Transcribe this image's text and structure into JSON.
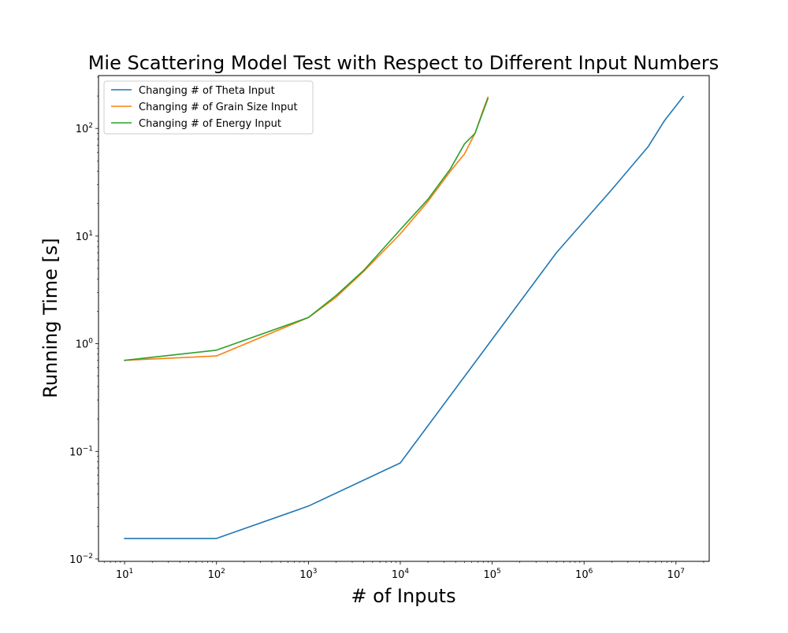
{
  "chart_data": {
    "type": "line",
    "title": "Mie Scattering Model Test with Respect to Different Input Numbers",
    "xlabel": "# of Inputs",
    "ylabel": "Running Time [s]",
    "xscale": "log",
    "yscale": "log",
    "xlim": [
      5.2,
      23000000
    ],
    "ylim": [
      0.0095,
      310
    ],
    "legend_position": "top-left",
    "grid": false,
    "x_ticks": [
      {
        "value": 10,
        "base": "10",
        "exp": "1"
      },
      {
        "value": 100,
        "base": "10",
        "exp": "2"
      },
      {
        "value": 1000,
        "base": "10",
        "exp": "3"
      },
      {
        "value": 10000,
        "base": "10",
        "exp": "4"
      },
      {
        "value": 100000,
        "base": "10",
        "exp": "5"
      },
      {
        "value": 1000000,
        "base": "10",
        "exp": "6"
      },
      {
        "value": 10000000,
        "base": "10",
        "exp": "7"
      }
    ],
    "y_ticks": [
      {
        "value": 0.01,
        "base": "10",
        "exp": "−2"
      },
      {
        "value": 0.1,
        "base": "10",
        "exp": "−1"
      },
      {
        "value": 1,
        "base": "10",
        "exp": "0"
      },
      {
        "value": 10,
        "base": "10",
        "exp": "1"
      },
      {
        "value": 100,
        "base": "10",
        "exp": "2"
      }
    ],
    "series": [
      {
        "name": "Changing # of Theta Input",
        "color": "#1f77b4",
        "x": [
          10,
          100,
          1000,
          10000,
          100000,
          500000,
          2000000,
          5000000,
          7500000,
          12000000
        ],
        "y": [
          0.0155,
          0.0155,
          0.031,
          0.078,
          1.1,
          7.0,
          27,
          68,
          118,
          198
        ]
      },
      {
        "name": "Changing # of Grain Size Input",
        "color": "#ff7f0e",
        "x": [
          10,
          100,
          1000,
          2000,
          4000,
          10000,
          20000,
          35000,
          50000,
          65000,
          80000,
          90000
        ],
        "y": [
          0.7,
          0.77,
          1.75,
          2.7,
          4.7,
          10.5,
          21,
          40,
          58,
          90,
          150,
          195
        ]
      },
      {
        "name": "Changing # of Energy Input",
        "color": "#2ca02c",
        "x": [
          10,
          100,
          1000,
          2000,
          4000,
          10000,
          20000,
          35000,
          50000,
          65000,
          90000
        ],
        "y": [
          0.7,
          0.87,
          1.75,
          2.8,
          4.8,
          11.5,
          22,
          42,
          72,
          90,
          190
        ]
      }
    ]
  }
}
